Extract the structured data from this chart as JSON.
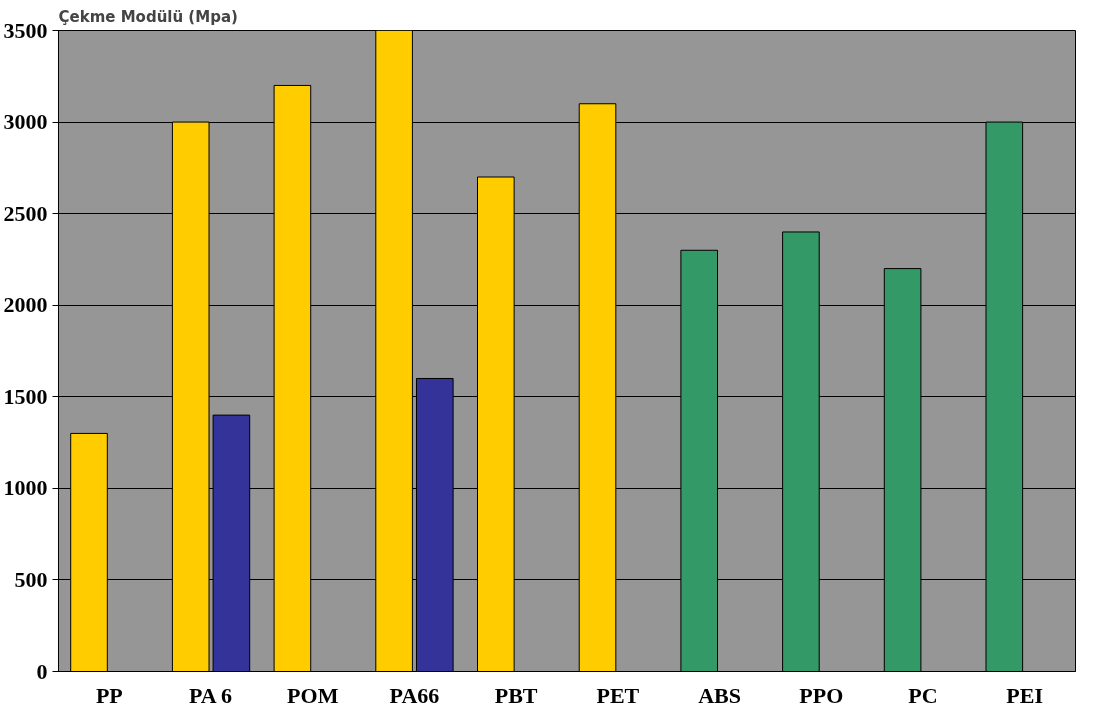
{
  "chart_data": {
    "type": "bar",
    "title": "Çekme Modülü (Mpa)",
    "categories": [
      "PP",
      "PA 6",
      "POM",
      "PA66",
      "PBT",
      "PET",
      "ABS",
      "PPO",
      "PC",
      "PEI"
    ],
    "series": [
      {
        "colors": [
          "#ffcc00",
          "#ffcc00",
          "#ffcc00",
          "#ffcc00",
          "#ffcc00",
          "#ffcc00",
          "#339966",
          "#339966",
          "#339966",
          "#339966"
        ],
        "values": [
          1300,
          3000,
          3200,
          3500,
          2700,
          3100,
          2300,
          2400,
          2200,
          3000
        ]
      },
      {
        "color": "#333399",
        "values": [
          null,
          1400,
          null,
          1600,
          null,
          null,
          null,
          null,
          null,
          null
        ]
      }
    ],
    "ylim": [
      0,
      3500
    ],
    "yticks": [
      0,
      500,
      1000,
      1500,
      2000,
      2500,
      3000,
      3500
    ],
    "grid": "y"
  }
}
